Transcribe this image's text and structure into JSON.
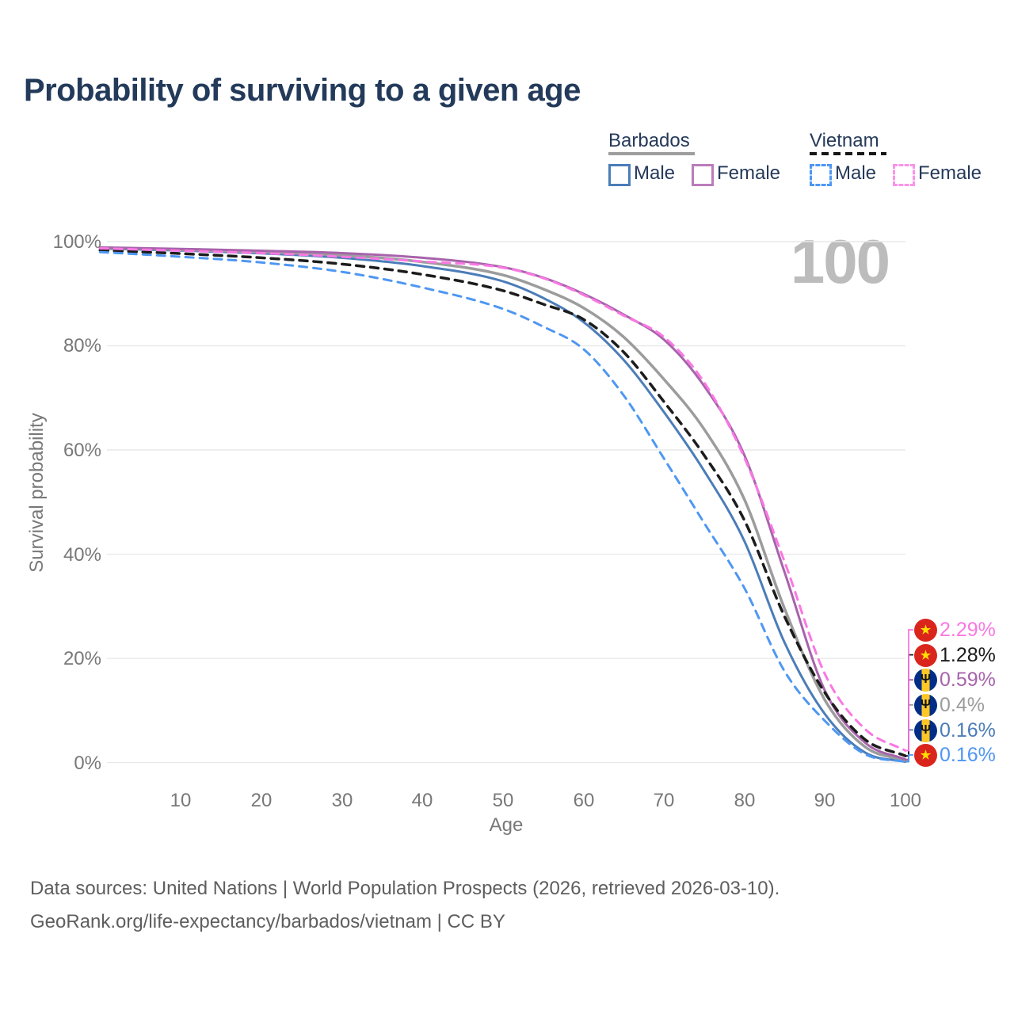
{
  "title": "Probability of surviving to a given age",
  "watermark": "100",
  "legend": {
    "groups": [
      {
        "country": "Barbados",
        "line_style": "solid",
        "items": [
          {
            "label": "Male",
            "color": "#4b7db8"
          },
          {
            "label": "Female",
            "color": "#bb7cbb"
          }
        ]
      },
      {
        "country": "Vietnam",
        "line_style": "dashed",
        "items": [
          {
            "label": "Male",
            "color": "#4f97f2"
          },
          {
            "label": "Female",
            "color": "#fb93e8"
          }
        ]
      }
    ]
  },
  "axes": {
    "y_title": "Survival probability",
    "x_title": "Age",
    "y_ticks": [
      "100%",
      "80%",
      "60%",
      "40%",
      "20%",
      "0%"
    ],
    "x_ticks": [
      "10",
      "20",
      "30",
      "40",
      "50",
      "60",
      "70",
      "80",
      "90",
      "100"
    ]
  },
  "end_labels": [
    {
      "value": "2.29%",
      "flag": "vietnam",
      "glyph": "★",
      "color": "#fa78e2",
      "series": "Vietnam Female"
    },
    {
      "value": "1.28%",
      "flag": "vietnam",
      "glyph": "★",
      "color": "#1c1c1c",
      "series": "Vietnam Total"
    },
    {
      "value": "0.59%",
      "flag": "barbados",
      "glyph": "Ψ",
      "color": "#a763ab",
      "series": "Barbados Female"
    },
    {
      "value": "0.4%",
      "flag": "barbados",
      "glyph": "Ψ",
      "color": "#9c9c9c",
      "series": "Barbados Total"
    },
    {
      "value": "0.16%",
      "flag": "barbados",
      "glyph": "Ψ",
      "color": "#4b7db8",
      "series": "Barbados Male"
    },
    {
      "value": "0.16%",
      "flag": "vietnam",
      "glyph": "★",
      "color": "#4f97f2",
      "series": "Vietnam Male"
    }
  ],
  "footer": {
    "line1": "Data sources: United Nations | World Population Prospects (2026, retrieved 2026-03-10).",
    "line2": "GeoRank.org/life-expectancy/barbados/vietnam | CC BY"
  },
  "chart_data": {
    "type": "line",
    "title": "Probability of surviving to a given age",
    "xlabel": "Age",
    "ylabel": "Survival probability",
    "xlim": [
      0,
      100
    ],
    "ylim": [
      0,
      100
    ],
    "x_tick_values": [
      10,
      20,
      30,
      40,
      50,
      60,
      70,
      80,
      90,
      100
    ],
    "y_tick_values_pct": [
      0,
      20,
      40,
      60,
      80,
      100
    ],
    "grid": "horizontal",
    "legend_position": "top-right",
    "x": [
      0,
      10,
      20,
      30,
      40,
      50,
      55,
      60,
      65,
      70,
      75,
      80,
      85,
      90,
      95,
      100
    ],
    "series": [
      {
        "name": "Barbados Male",
        "color": "#4b7db8",
        "style": "solid",
        "width": 3,
        "label_row": 4,
        "values": [
          98.65,
          98.3,
          97.75,
          96.9,
          95.3,
          92.4,
          89.2,
          84.6,
          77.3,
          67.3,
          56.0,
          42.5,
          23.0,
          9.3,
          1.9,
          0.16
        ]
      },
      {
        "name": "Barbados Total",
        "color": "#9c9c9c",
        "style": "solid",
        "width": 3.5,
        "label_row": 3,
        "values": [
          98.8,
          98.45,
          98.0,
          97.4,
          96.1,
          93.6,
          90.9,
          87.3,
          81.7,
          73.6,
          64.0,
          50.5,
          29.5,
          12.0,
          3.0,
          0.4
        ]
      },
      {
        "name": "Barbados Female",
        "color": "#a763ab",
        "style": "solid",
        "width": 3,
        "label_row": 2,
        "values": [
          98.9,
          98.6,
          98.25,
          97.8,
          96.9,
          95.1,
          93.1,
          90.0,
          86.0,
          81.2,
          72.3,
          59.0,
          36.5,
          13.8,
          3.8,
          0.59
        ]
      },
      {
        "name": "Vietnam Total",
        "color": "#1c1c1c",
        "style": "dashed",
        "width": 3.5,
        "label_row": 1,
        "values": [
          98.35,
          97.7,
          96.9,
          95.7,
          93.7,
          90.6,
          88.0,
          85.1,
          78.8,
          69.3,
          59.0,
          46.5,
          28.0,
          13.4,
          4.4,
          1.28
        ]
      },
      {
        "name": "Vietnam Male",
        "color": "#4f97f2",
        "style": "dashed",
        "width": 3,
        "label_row": 5,
        "values": [
          98.0,
          97.1,
          96.0,
          94.2,
          91.2,
          87.1,
          83.7,
          79.4,
          70.5,
          58.4,
          46.0,
          33.5,
          17.5,
          8.0,
          1.6,
          0.16
        ]
      },
      {
        "name": "Vietnam Female",
        "color": "#fa78e2",
        "style": "dashed",
        "width": 3,
        "label_row": 0,
        "values": [
          98.7,
          98.25,
          97.8,
          97.1,
          96.2,
          95.0,
          93.0,
          89.8,
          85.8,
          81.7,
          73.0,
          58.5,
          38.5,
          17.0,
          6.4,
          2.29
        ]
      }
    ]
  }
}
